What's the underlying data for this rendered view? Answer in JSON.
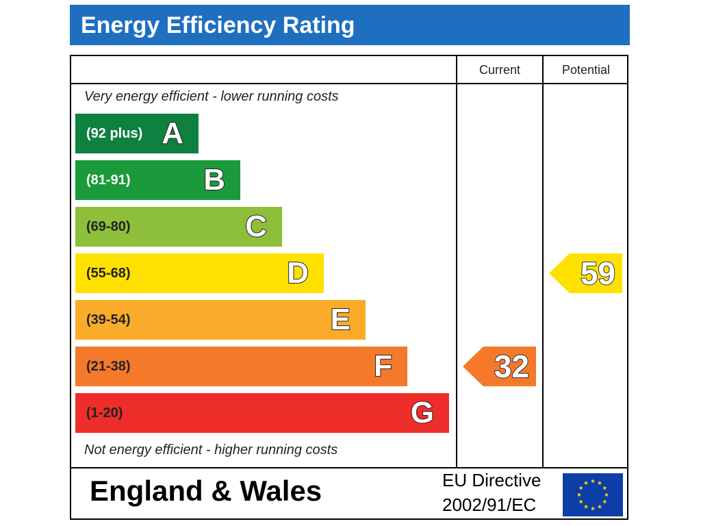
{
  "header": {
    "title": "Energy Efficiency Rating"
  },
  "columns": {
    "current": "Current",
    "potential": "Potential"
  },
  "notes": {
    "top": "Very energy efficient - lower running costs",
    "bottom": "Not energy efficient - higher running costs"
  },
  "footer": {
    "region": "England & Wales",
    "directive_line1": "EU Directive",
    "directive_line2": "2002/91/EC",
    "flag_icon": "eu-flag-icon"
  },
  "chart_data": {
    "type": "bar",
    "title": "Energy Efficiency Rating",
    "bands": [
      {
        "letter": "A",
        "range": "(92 plus)",
        "color": "#0e8040",
        "text_color": "#ffffff"
      },
      {
        "letter": "B",
        "range": "(81-91)",
        "color": "#1a9a3a",
        "text_color": "#ffffff"
      },
      {
        "letter": "C",
        "range": "(69-80)",
        "color": "#8dbf3a",
        "text_color": "#222222"
      },
      {
        "letter": "D",
        "range": "(55-68)",
        "color": "#ffe100",
        "text_color": "#222222"
      },
      {
        "letter": "E",
        "range": "(39-54)",
        "color": "#fbab2a",
        "text_color": "#222222"
      },
      {
        "letter": "F",
        "range": "(21-38)",
        "color": "#f5792a",
        "text_color": "#222222"
      },
      {
        "letter": "G",
        "range": "(1-20)",
        "color": "#ee2e2a",
        "text_color": "#222222"
      }
    ],
    "current": {
      "value": 32,
      "band": "F",
      "color": "#f5792a"
    },
    "potential": {
      "value": 59,
      "band": "D",
      "color": "#ffe100"
    }
  }
}
